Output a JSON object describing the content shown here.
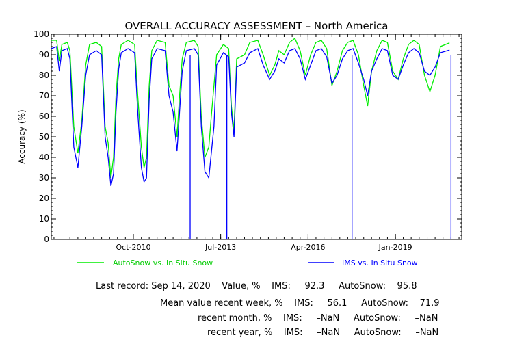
{
  "chart_data": {
    "type": "line",
    "title": "OVERALL ACCURACY ASSESSMENT – North America",
    "ylabel": "Accuracy (%)",
    "ylim": [
      0,
      100
    ],
    "yticks": [
      0,
      10,
      20,
      30,
      40,
      50,
      60,
      70,
      80,
      90,
      100
    ],
    "xlim": [
      "2008-03-01",
      "2021-02-01"
    ],
    "xticks": [
      {
        "date": "2010-10-01",
        "label": "Oct-2010"
      },
      {
        "date": "2013-07-01",
        "label": "Jul-2013"
      },
      {
        "date": "2016-04-01",
        "label": "Apr-2016"
      },
      {
        "date": "2019-01-01",
        "label": "Jan-2019"
      }
    ],
    "series": [
      {
        "name": "AutoSnow vs. In Situ Snow",
        "color": "#00ee00",
        "points": [
          [
            "2008-03-01",
            97
          ],
          [
            "2008-05-01",
            97
          ],
          [
            "2008-06-01",
            87
          ],
          [
            "2008-07-01",
            95
          ],
          [
            "2008-09-01",
            96
          ],
          [
            "2008-10-01",
            92
          ],
          [
            "2008-11-15",
            55
          ],
          [
            "2009-01-01",
            42
          ],
          [
            "2009-02-15",
            58
          ],
          [
            "2009-04-01",
            85
          ],
          [
            "2009-05-15",
            95
          ],
          [
            "2009-08-01",
            96
          ],
          [
            "2009-10-01",
            94
          ],
          [
            "2009-11-10",
            55
          ],
          [
            "2009-12-15",
            47
          ],
          [
            "2010-01-15",
            30
          ],
          [
            "2010-02-15",
            40
          ],
          [
            "2010-03-15",
            70
          ],
          [
            "2010-04-15",
            88
          ],
          [
            "2010-05-15",
            95
          ],
          [
            "2010-08-01",
            97
          ],
          [
            "2010-10-15",
            95
          ],
          [
            "2010-11-20",
            70
          ],
          [
            "2011-01-01",
            45
          ],
          [
            "2011-02-01",
            35
          ],
          [
            "2011-03-01",
            40
          ],
          [
            "2011-04-01",
            75
          ],
          [
            "2011-05-01",
            92
          ],
          [
            "2011-07-01",
            97
          ],
          [
            "2011-10-01",
            96
          ],
          [
            "2011-11-15",
            75
          ],
          [
            "2012-01-01",
            70
          ],
          [
            "2012-02-15",
            50
          ],
          [
            "2012-03-15",
            70
          ],
          [
            "2012-04-15",
            88
          ],
          [
            "2012-06-01",
            96
          ],
          [
            "2012-09-01",
            97
          ],
          [
            "2012-10-15",
            94
          ],
          [
            "2012-11-20",
            60
          ],
          [
            "2013-01-01",
            40
          ],
          [
            "2013-02-15",
            45
          ],
          [
            "2013-03-15",
            60
          ],
          [
            "2013-04-15",
            75
          ],
          [
            "2013-05-15",
            90
          ],
          [
            "2013-08-01",
            95
          ],
          [
            "2013-10-01",
            93
          ],
          [
            "2013-11-01",
            65
          ],
          [
            "2013-12-01",
            53
          ],
          [
            "2014-01-01",
            88
          ],
          [
            "2014-04-01",
            90
          ],
          [
            "2014-06-01",
            96
          ],
          [
            "2014-09-01",
            97
          ],
          [
            "2014-11-01",
            90
          ],
          [
            "2015-01-15",
            80
          ],
          [
            "2015-03-15",
            85
          ],
          [
            "2015-05-01",
            92
          ],
          [
            "2015-07-01",
            90
          ],
          [
            "2015-09-01",
            96
          ],
          [
            "2015-11-01",
            98
          ],
          [
            "2016-01-01",
            92
          ],
          [
            "2016-03-01",
            80
          ],
          [
            "2016-05-01",
            90
          ],
          [
            "2016-07-01",
            96
          ],
          [
            "2016-09-01",
            97
          ],
          [
            "2016-11-01",
            93
          ],
          [
            "2017-01-01",
            75
          ],
          [
            "2017-03-01",
            82
          ],
          [
            "2017-05-01",
            92
          ],
          [
            "2017-07-01",
            96
          ],
          [
            "2017-09-01",
            97
          ],
          [
            "2017-11-01",
            90
          ],
          [
            "2018-01-01",
            75
          ],
          [
            "2018-02-15",
            65
          ],
          [
            "2018-04-01",
            82
          ],
          [
            "2018-06-01",
            92
          ],
          [
            "2018-08-01",
            97
          ],
          [
            "2018-10-01",
            96
          ],
          [
            "2018-12-01",
            82
          ],
          [
            "2019-02-01",
            78
          ],
          [
            "2019-04-01",
            88
          ],
          [
            "2019-06-01",
            95
          ],
          [
            "2019-08-01",
            97
          ],
          [
            "2019-10-01",
            95
          ],
          [
            "2019-12-01",
            80
          ],
          [
            "2020-02-01",
            72
          ],
          [
            "2020-04-01",
            80
          ],
          [
            "2020-06-01",
            94
          ],
          [
            "2020-09-14",
            95.8
          ]
        ]
      },
      {
        "name": "IMS vs. In Situ Snow",
        "color": "#0000ff",
        "points": [
          [
            "2008-03-01",
            93
          ],
          [
            "2008-05-01",
            94
          ],
          [
            "2008-06-01",
            82
          ],
          [
            "2008-07-01",
            92
          ],
          [
            "2008-09-01",
            93
          ],
          [
            "2008-10-01",
            88
          ],
          [
            "2008-11-15",
            45
          ],
          [
            "2009-01-01",
            35
          ],
          [
            "2009-02-15",
            55
          ],
          [
            "2009-04-01",
            80
          ],
          [
            "2009-05-15",
            90
          ],
          [
            "2009-08-01",
            92
          ],
          [
            "2009-10-01",
            90
          ],
          [
            "2009-11-10",
            50
          ],
          [
            "2009-12-15",
            40
          ],
          [
            "2010-01-15",
            26
          ],
          [
            "2010-02-15",
            32
          ],
          [
            "2010-03-15",
            62
          ],
          [
            "2010-04-15",
            83
          ],
          [
            "2010-05-15",
            91
          ],
          [
            "2010-08-01",
            93
          ],
          [
            "2010-10-15",
            91
          ],
          [
            "2010-11-20",
            62
          ],
          [
            "2011-01-01",
            35
          ],
          [
            "2011-02-01",
            28
          ],
          [
            "2011-03-01",
            30
          ],
          [
            "2011-04-01",
            68
          ],
          [
            "2011-05-01",
            88
          ],
          [
            "2011-07-01",
            93
          ],
          [
            "2011-10-01",
            92
          ],
          [
            "2011-11-15",
            70
          ],
          [
            "2012-01-01",
            62
          ],
          [
            "2012-02-15",
            43
          ],
          [
            "2012-03-15",
            62
          ],
          [
            "2012-04-15",
            82
          ],
          [
            "2012-06-01",
            92
          ],
          [
            "2012-09-01",
            93
          ],
          [
            "2012-10-15",
            90
          ],
          [
            "2012-11-20",
            55
          ],
          [
            "2013-01-01",
            33
          ],
          [
            "2013-02-15",
            30
          ],
          [
            "2013-03-15",
            42
          ],
          [
            "2013-04-15",
            55
          ],
          [
            "2013-05-15",
            85
          ],
          [
            "2013-08-01",
            91
          ],
          [
            "2013-10-01",
            89
          ],
          [
            "2013-11-01",
            62
          ],
          [
            "2013-12-01",
            50
          ],
          [
            "2014-01-01",
            84
          ],
          [
            "2014-04-01",
            86
          ],
          [
            "2014-06-01",
            91
          ],
          [
            "2014-09-01",
            93
          ],
          [
            "2014-11-01",
            85
          ],
          [
            "2015-01-15",
            78
          ],
          [
            "2015-03-15",
            82
          ],
          [
            "2015-05-01",
            88
          ],
          [
            "2015-07-01",
            86
          ],
          [
            "2015-09-01",
            92
          ],
          [
            "2015-11-01",
            93
          ],
          [
            "2016-01-01",
            88
          ],
          [
            "2016-03-01",
            78
          ],
          [
            "2016-05-01",
            85
          ],
          [
            "2016-07-01",
            92
          ],
          [
            "2016-09-01",
            93
          ],
          [
            "2016-11-01",
            89
          ],
          [
            "2017-01-01",
            76
          ],
          [
            "2017-03-01",
            80
          ],
          [
            "2017-05-01",
            88
          ],
          [
            "2017-07-01",
            92
          ],
          [
            "2017-09-01",
            93
          ],
          [
            "2017-11-01",
            86
          ],
          [
            "2018-01-01",
            78
          ],
          [
            "2018-02-15",
            70
          ],
          [
            "2018-04-01",
            82
          ],
          [
            "2018-06-01",
            88
          ],
          [
            "2018-08-01",
            93
          ],
          [
            "2018-10-01",
            92
          ],
          [
            "2018-12-01",
            80
          ],
          [
            "2019-02-01",
            78
          ],
          [
            "2019-04-01",
            85
          ],
          [
            "2019-06-01",
            91
          ],
          [
            "2019-08-01",
            93
          ],
          [
            "2019-10-01",
            91
          ],
          [
            "2019-12-01",
            82
          ],
          [
            "2020-02-01",
            80
          ],
          [
            "2020-04-01",
            84
          ],
          [
            "2020-06-01",
            91
          ],
          [
            "2020-09-14",
            92.3
          ]
        ],
        "drops": [
          [
            "2012-07-15",
            0
          ],
          [
            "2013-09-10",
            0
          ],
          [
            "2017-08-20",
            0
          ],
          [
            "2020-10-01",
            0
          ]
        ]
      }
    ],
    "legend_placement": "bottom"
  },
  "stats": {
    "line1": "Last record: Sep 14, 2020    Value, %    IMS:     92.3     AutoSnow:    95.8",
    "line2": "Mean value recent week, %    IMS:     56.1     AutoSnow:    71.9",
    "line3": "recent month, %    IMS:     –NaN     AutoSnow:     –NaN",
    "line4": "recent year, %    IMS:     –NaN     AutoSnow:     –NaN"
  }
}
